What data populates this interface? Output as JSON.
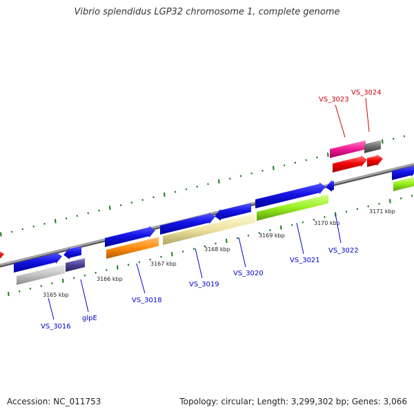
{
  "header": {
    "title": "Vibrio splendidus LGP32 chromosome 1, complete genome"
  },
  "footer": {
    "accession": "Accession: NC_011753",
    "summary": "Topology: circular; Length: 3,299,302 bp; Genes: 3,066"
  },
  "scale_labels": [
    "3165 kbp",
    "3166 kbp",
    "3167 kbp",
    "3168 kbp",
    "3169 kbp",
    "3170 kbp",
    "3171 kbp"
  ],
  "gene_labels": {
    "vs3016": "VS_3016",
    "glpe": "glpE",
    "vs3018": "VS_3018",
    "vs3019": "VS_3019",
    "vs3020": "VS_3020",
    "vs3021": "VS_3021",
    "vs3022": "VS_3022",
    "vs3023": "VS_3023",
    "vs3024": "VS_3024"
  },
  "colors": {
    "forward_gene": "#1414e6",
    "label_blue": "#0000cc",
    "label_red": "#cc0000",
    "backbone": "#888888",
    "tick": "#1a7a1a"
  }
}
